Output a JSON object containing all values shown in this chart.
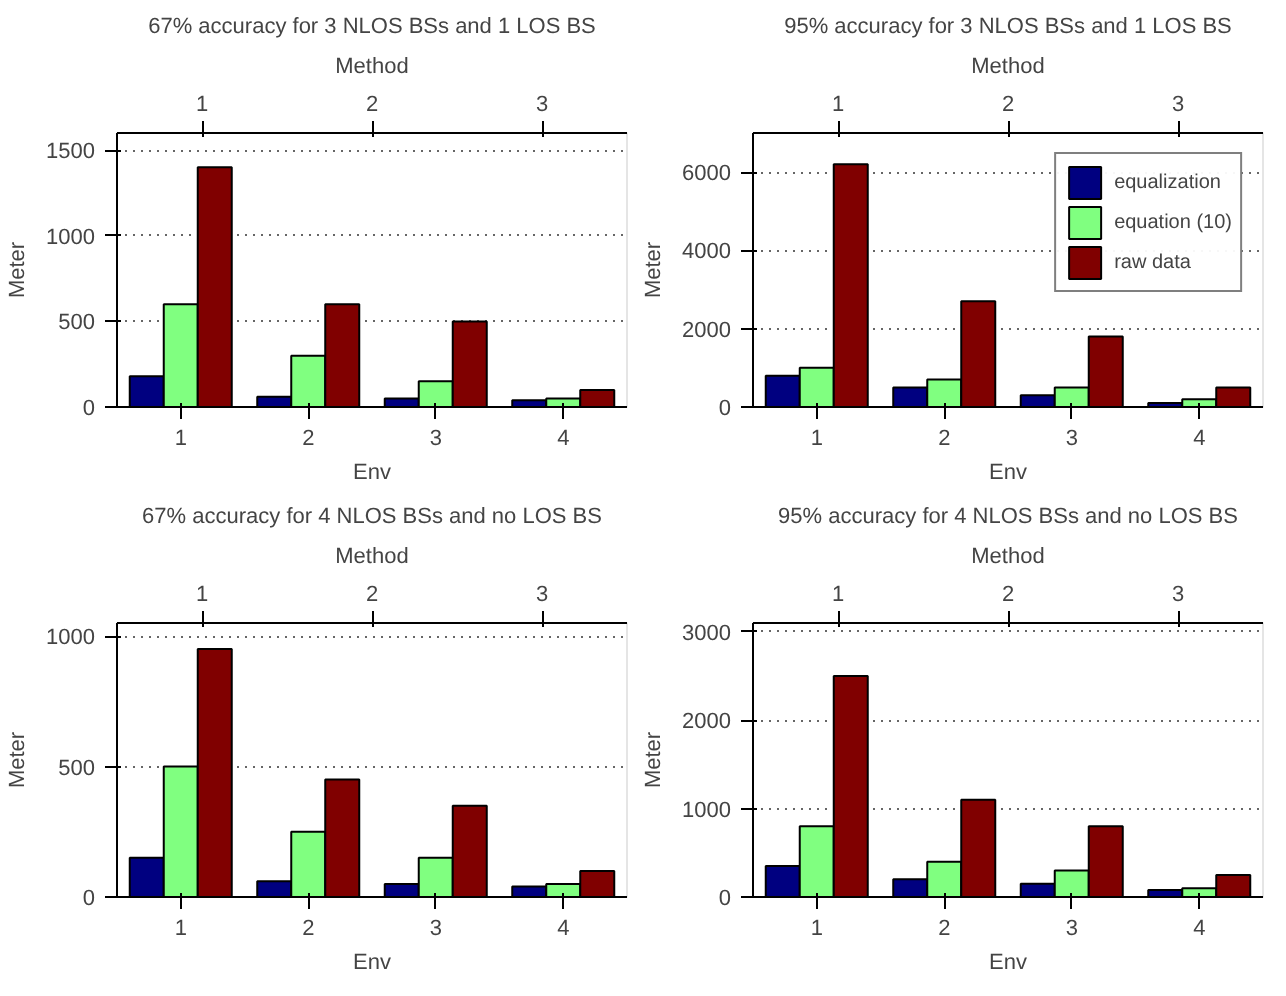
{
  "chart_data": [
    {
      "type": "bar",
      "title": "67% accuracy for 3 NLOS BSs and 1 LOS BS",
      "xlabel": "Env",
      "ylabel": "Meter",
      "x2label": "Method",
      "x2lim": [
        0.5,
        3.5
      ],
      "x2ticks": [
        1,
        2,
        3
      ],
      "categories": [
        "1",
        "2",
        "3",
        "4"
      ],
      "ylim": [
        0,
        1600
      ],
      "yticks": [
        0,
        500,
        1000,
        1500
      ],
      "grid": "y",
      "series": [
        {
          "color": "#000080",
          "values": [
            180,
            60,
            50,
            40
          ]
        },
        {
          "color": "#80ff80",
          "values": [
            600,
            300,
            150,
            50
          ]
        },
        {
          "color": "#800000",
          "values": [
            1400,
            600,
            500,
            100
          ]
        }
      ]
    },
    {
      "type": "bar",
      "title": "95% accuracy for 3 NLOS BSs and 1 LOS BS",
      "xlabel": "Env",
      "ylabel": "Meter",
      "x2label": "Method",
      "x2lim": [
        0.5,
        3.5
      ],
      "x2ticks": [
        1,
        2,
        3
      ],
      "categories": [
        "1",
        "2",
        "3",
        "4"
      ],
      "ylim": [
        0,
        7000
      ],
      "yticks": [
        0,
        2000,
        4000,
        6000
      ],
      "grid": "y",
      "legend": "top right",
      "series": [
        {
          "name": "equalization",
          "color": "#000080",
          "values": [
            800,
            500,
            300,
            100
          ]
        },
        {
          "name": "equation (10)",
          "color": "#80ff80",
          "values": [
            1000,
            700,
            500,
            200
          ]
        },
        {
          "name": "raw data",
          "color": "#800000",
          "values": [
            6200,
            2700,
            1800,
            500
          ]
        }
      ]
    },
    {
      "type": "bar",
      "title": "67% accuracy for 4 NLOS BSs and no LOS BS",
      "xlabel": "Env",
      "ylabel": "Meter",
      "x2label": "Method",
      "x2lim": [
        0.5,
        3.5
      ],
      "x2ticks": [
        1,
        2,
        3
      ],
      "categories": [
        "1",
        "2",
        "3",
        "4"
      ],
      "ylim": [
        0,
        1050
      ],
      "yticks": [
        0,
        500,
        1000
      ],
      "grid": "y",
      "series": [
        {
          "color": "#000080",
          "values": [
            150,
            60,
            50,
            40
          ]
        },
        {
          "color": "#80ff80",
          "values": [
            500,
            250,
            150,
            50
          ]
        },
        {
          "color": "#800000",
          "values": [
            950,
            450,
            350,
            100
          ]
        }
      ]
    },
    {
      "type": "bar",
      "title": "95% accuracy for 4 NLOS BSs and no LOS BS",
      "xlabel": "Env",
      "ylabel": "Meter",
      "x2label": "Method",
      "x2lim": [
        0.5,
        3.5
      ],
      "x2ticks": [
        1,
        2,
        3
      ],
      "categories": [
        "1",
        "2",
        "3",
        "4"
      ],
      "ylim": [
        0,
        3100
      ],
      "yticks": [
        0,
        1000,
        2000,
        3000
      ],
      "grid": "y",
      "series": [
        {
          "color": "#000080",
          "values": [
            350,
            200,
            150,
            80
          ]
        },
        {
          "color": "#80ff80",
          "values": [
            800,
            400,
            300,
            100
          ]
        },
        {
          "color": "#800000",
          "values": [
            2500,
            1100,
            800,
            250
          ]
        }
      ]
    }
  ]
}
